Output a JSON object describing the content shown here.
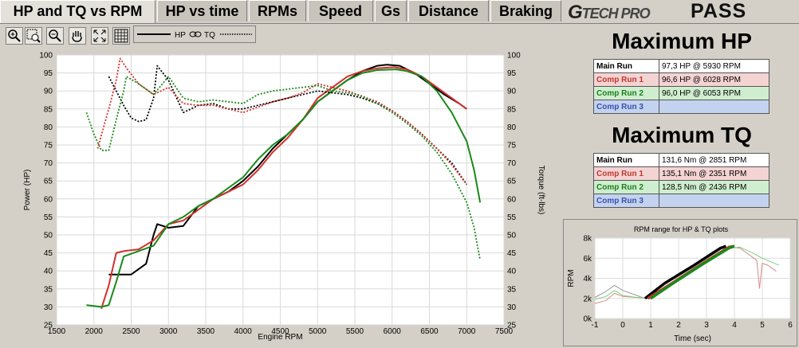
{
  "tabs": [
    "HP and TQ vs RPM",
    "HP vs time",
    "RPMs",
    "Speed",
    "Gs",
    "Distance",
    "Braking"
  ],
  "brand": {
    "logo": "TECH PRO",
    "logo_mark": "G",
    "product": "PASS"
  },
  "toolbar": {
    "tools": [
      "zoom-in-icon",
      "zoom-box-icon",
      "zoom-out-icon",
      "pan-hand-icon",
      "fit-icon",
      "grid-icon"
    ],
    "legend_hp": "HP",
    "legend_tq": "TQ"
  },
  "max_hp": {
    "title": "Maximum HP",
    "rows": [
      {
        "label": "Main Run",
        "value": "97,3 HP @ 5930 RPM",
        "color": "#ffffff"
      },
      {
        "label": "Comp Run 1",
        "value": "96,6 HP @ 6028 RPM",
        "color": "#f4d3d3"
      },
      {
        "label": "Comp Run 2",
        "value": "96,0 HP @ 6053 RPM",
        "color": "#cfeecf"
      },
      {
        "label": "Comp Run 3",
        "value": "",
        "color": "#c3d3ef"
      }
    ]
  },
  "max_tq": {
    "title": "Maximum TQ",
    "rows": [
      {
        "label": "Main Run",
        "value": "131,6 Nm @ 2851 RPM",
        "color": "#ffffff"
      },
      {
        "label": "Comp Run 1",
        "value": "135,1 Nm @ 2351 RPM",
        "color": "#f4d3d3"
      },
      {
        "label": "Comp Run 2",
        "value": "128,5 Nm @ 2436 RPM",
        "color": "#cfeecf"
      },
      {
        "label": "Comp Run 3",
        "value": "",
        "color": "#c3d3ef"
      }
    ]
  },
  "label_colors": {
    "Main Run": "#000000",
    "Comp Run 1": "#c0392b",
    "Comp Run 2": "#1a7f1a",
    "Comp Run 3": "#3a4fae"
  },
  "chart_data": [
    {
      "type": "line",
      "title": "",
      "xlabel": "Engine RPM",
      "ylabel": "Power (HP)",
      "y2label": "Torque (ft-lbs)",
      "xlim": [
        1500,
        7500
      ],
      "ylim": [
        25,
        100
      ],
      "y2lim": [
        25,
        100
      ],
      "xticks": [
        "1500",
        "2000",
        "2500",
        "3000",
        "3500",
        "4000",
        "4500",
        "5000",
        "5500",
        "6000",
        "6500",
        "7000",
        "7500"
      ],
      "yticks": [
        "25",
        "30",
        "35",
        "40",
        "45",
        "50",
        "55",
        "60",
        "65",
        "70",
        "75",
        "80",
        "85",
        "90",
        "95",
        "100"
      ],
      "y2ticks": [
        "25",
        "30",
        "35",
        "40",
        "45",
        "50",
        "55",
        "60",
        "65",
        "70",
        "75",
        "80",
        "85",
        "90",
        "95",
        "100"
      ],
      "grid": true,
      "series": [
        {
          "name": "Main Run",
          "metric": "HP",
          "color": "#000000",
          "style": "solid",
          "points": [
            [
              2200,
              39
            ],
            [
              2500,
              39
            ],
            [
              2700,
              42
            ],
            [
              2800,
              50
            ],
            [
              2850,
              53
            ],
            [
              3000,
              52
            ],
            [
              3200,
              52.5
            ],
            [
              3400,
              58
            ],
            [
              3600,
              60
            ],
            [
              3800,
              62
            ],
            [
              4000,
              65
            ],
            [
              4200,
              69
            ],
            [
              4400,
              74
            ],
            [
              4600,
              78
            ],
            [
              4800,
              82
            ],
            [
              5000,
              87
            ],
            [
              5200,
              90
            ],
            [
              5400,
              93
            ],
            [
              5600,
              95.5
            ],
            [
              5800,
              97
            ],
            [
              5930,
              97.3
            ],
            [
              6100,
              97
            ],
            [
              6300,
              95
            ],
            [
              6500,
              92
            ],
            [
              6700,
              89
            ],
            [
              6900,
              86.5
            ],
            [
              7000,
              85
            ]
          ]
        },
        {
          "name": "Comp Run 1",
          "metric": "HP",
          "color": "#d0312d",
          "style": "solid",
          "points": [
            [
              2100,
              29.5
            ],
            [
              2200,
              36
            ],
            [
              2300,
              45
            ],
            [
              2400,
              45.5
            ],
            [
              2600,
              46
            ],
            [
              2800,
              48.5
            ],
            [
              3000,
              53
            ],
            [
              3200,
              54
            ],
            [
              3400,
              57
            ],
            [
              3600,
              60
            ],
            [
              3800,
              62
            ],
            [
              4000,
              64
            ],
            [
              4200,
              68
            ],
            [
              4400,
              73
            ],
            [
              4600,
              77
            ],
            [
              4800,
              82
            ],
            [
              5000,
              88
            ],
            [
              5200,
              91
            ],
            [
              5400,
              94
            ],
            [
              5600,
              95.5
            ],
            [
              5800,
              96.3
            ],
            [
              6028,
              96.6
            ],
            [
              6200,
              96
            ],
            [
              6400,
              94
            ],
            [
              6600,
              91
            ],
            [
              6800,
              88
            ],
            [
              7000,
              85
            ]
          ]
        },
        {
          "name": "Comp Run 2",
          "metric": "HP",
          "color": "#1a8a1a",
          "style": "solid",
          "points": [
            [
              1900,
              30.5
            ],
            [
              2100,
              30
            ],
            [
              2200,
              30.5
            ],
            [
              2300,
              37
            ],
            [
              2400,
              44
            ],
            [
              2600,
              45.5
            ],
            [
              2800,
              47
            ],
            [
              3000,
              53
            ],
            [
              3200,
              55
            ],
            [
              3400,
              58
            ],
            [
              3600,
              60
            ],
            [
              3800,
              63
            ],
            [
              4000,
              66
            ],
            [
              4200,
              71
            ],
            [
              4400,
              75
            ],
            [
              4600,
              78
            ],
            [
              4800,
              82
            ],
            [
              5000,
              87
            ],
            [
              5200,
              90
            ],
            [
              5400,
              93
            ],
            [
              5600,
              95
            ],
            [
              5800,
              95.8
            ],
            [
              6053,
              96
            ],
            [
              6200,
              95.5
            ],
            [
              6400,
              94
            ],
            [
              6600,
              90
            ],
            [
              6800,
              84
            ],
            [
              7000,
              76
            ],
            [
              7100,
              68
            ],
            [
              7180,
              59
            ]
          ]
        },
        {
          "name": "Main Run",
          "metric": "TQ",
          "color": "#000000",
          "style": "dotted",
          "points": [
            [
              2200,
              94
            ],
            [
              2300,
              90
            ],
            [
              2400,
              86
            ],
            [
              2500,
              82.5
            ],
            [
              2600,
              81.5
            ],
            [
              2700,
              82
            ],
            [
              2800,
              88
            ],
            [
              2850,
              97
            ],
            [
              3000,
              93
            ],
            [
              3200,
              84
            ],
            [
              3400,
              86
            ],
            [
              3600,
              86.5
            ],
            [
              3800,
              85
            ],
            [
              4000,
              85
            ],
            [
              4200,
              86
            ],
            [
              4400,
              87
            ],
            [
              4600,
              88
            ],
            [
              4800,
              89
            ],
            [
              5000,
              90
            ],
            [
              5200,
              89.5
            ],
            [
              5400,
              89
            ],
            [
              5600,
              88
            ],
            [
              5800,
              86.5
            ],
            [
              6000,
              84.5
            ],
            [
              6200,
              81.5
            ],
            [
              6400,
              78
            ],
            [
              6600,
              74
            ],
            [
              6800,
              70
            ],
            [
              7000,
              64
            ]
          ]
        },
        {
          "name": "Comp Run 1",
          "metric": "TQ",
          "color": "#d0312d",
          "style": "dotted",
          "points": [
            [
              2050,
              74
            ],
            [
              2200,
              85
            ],
            [
              2300,
              93
            ],
            [
              2351,
              99
            ],
            [
              2450,
              96
            ],
            [
              2600,
              92
            ],
            [
              2800,
              89
            ],
            [
              3000,
              91
            ],
            [
              3200,
              86.5
            ],
            [
              3400,
              86
            ],
            [
              3600,
              86
            ],
            [
              3800,
              85
            ],
            [
              4000,
              84
            ],
            [
              4200,
              85.5
            ],
            [
              4400,
              87
            ],
            [
              4600,
              88
            ],
            [
              4800,
              89.5
            ],
            [
              5000,
              92
            ],
            [
              5200,
              91
            ],
            [
              5400,
              90
            ],
            [
              5600,
              88.5
            ],
            [
              5800,
              87
            ],
            [
              6000,
              84.5
            ],
            [
              6200,
              81.5
            ],
            [
              6400,
              78
            ],
            [
              6600,
              74
            ],
            [
              6800,
              69.5
            ],
            [
              7000,
              64
            ]
          ]
        },
        {
          "name": "Comp Run 2",
          "metric": "TQ",
          "color": "#1a8a1a",
          "style": "dotted",
          "points": [
            [
              1900,
              84
            ],
            [
              2000,
              78
            ],
            [
              2100,
              73.5
            ],
            [
              2200,
              73.5
            ],
            [
              2300,
              82
            ],
            [
              2400,
              90
            ],
            [
              2436,
              94
            ],
            [
              2600,
              92
            ],
            [
              2800,
              89
            ],
            [
              3000,
              94
            ],
            [
              3200,
              88
            ],
            [
              3400,
              87
            ],
            [
              3600,
              87.5
            ],
            [
              3800,
              87
            ],
            [
              4000,
              86.5
            ],
            [
              4200,
              89
            ],
            [
              4400,
              90
            ],
            [
              4600,
              90.5
            ],
            [
              4800,
              91
            ],
            [
              5000,
              91.5
            ],
            [
              5200,
              90
            ],
            [
              5400,
              89.5
            ],
            [
              5600,
              88.5
            ],
            [
              5800,
              86.5
            ],
            [
              6000,
              84
            ],
            [
              6200,
              81
            ],
            [
              6400,
              77.5
            ],
            [
              6600,
              73
            ],
            [
              6800,
              67
            ],
            [
              7000,
              59
            ],
            [
              7100,
              52
            ],
            [
              7180,
              43
            ]
          ]
        }
      ]
    },
    {
      "type": "line",
      "title": "RPM range for HP & TQ plots",
      "xlabel": "Time (sec)",
      "ylabel": "RPM",
      "xlim": [
        -1,
        6
      ],
      "ylim": [
        0,
        8000
      ],
      "xticks": [
        "-1",
        "0",
        "1",
        "2",
        "3",
        "4",
        "5",
        "6"
      ],
      "yticks": [
        "0k",
        "2k",
        "4k",
        "6k",
        "8k"
      ],
      "grid": true,
      "series": [
        {
          "name": "Main Run",
          "color": "#000000",
          "style": "thick",
          "points": [
            [
              0.8,
              2000
            ],
            [
              1.5,
              3500
            ],
            [
              2.5,
              5200
            ],
            [
              3.5,
              7000
            ],
            [
              3.7,
              7200
            ]
          ]
        },
        {
          "name": "Comp Run 1",
          "color": "#d0312d",
          "style": "thick",
          "points": [
            [
              0.9,
              2000
            ],
            [
              1.7,
              3400
            ],
            [
              2.7,
              5200
            ],
            [
              3.8,
              7100
            ],
            [
              4.0,
              7200
            ]
          ]
        },
        {
          "name": "Comp Run 2",
          "color": "#1a8a1a",
          "style": "thick",
          "points": [
            [
              1.0,
              2000
            ],
            [
              1.8,
              3500
            ],
            [
              2.8,
              5300
            ],
            [
              3.8,
              7000
            ],
            [
              4.0,
              7200
            ]
          ]
        },
        {
          "name": "Comp Run 1",
          "color": "#d98a8a",
          "style": "thin",
          "points": [
            [
              -1,
              1500
            ],
            [
              -0.6,
              1800
            ],
            [
              -0.3,
              2500
            ],
            [
              0.0,
              2200
            ],
            [
              0.5,
              2100
            ],
            [
              0.9,
              2000
            ],
            [
              3.8,
              7100
            ],
            [
              4.2,
              7000
            ],
            [
              4.6,
              6200
            ],
            [
              4.8,
              5800
            ],
            [
              4.9,
              3000
            ],
            [
              5.0,
              5500
            ],
            [
              5.2,
              5300
            ],
            [
              5.5,
              4700
            ]
          ]
        },
        {
          "name": "Comp Run 2",
          "color": "#7ed17e",
          "style": "thin",
          "points": [
            [
              -1,
              1900
            ],
            [
              -0.6,
              2200
            ],
            [
              -0.3,
              2800
            ],
            [
              0.0,
              2300
            ],
            [
              0.5,
              2100
            ],
            [
              1.0,
              2000
            ],
            [
              3.8,
              7000
            ],
            [
              4.2,
              7100
            ],
            [
              4.6,
              6600
            ],
            [
              5.0,
              6000
            ],
            [
              5.6,
              5300
            ]
          ]
        },
        {
          "name": "Main Run",
          "color": "#999999",
          "style": "thin",
          "points": [
            [
              -1,
              2100
            ],
            [
              -0.6,
              2700
            ],
            [
              -0.3,
              3300
            ],
            [
              0.0,
              2800
            ],
            [
              0.5,
              2300
            ],
            [
              0.8,
              2000
            ]
          ]
        }
      ]
    }
  ]
}
